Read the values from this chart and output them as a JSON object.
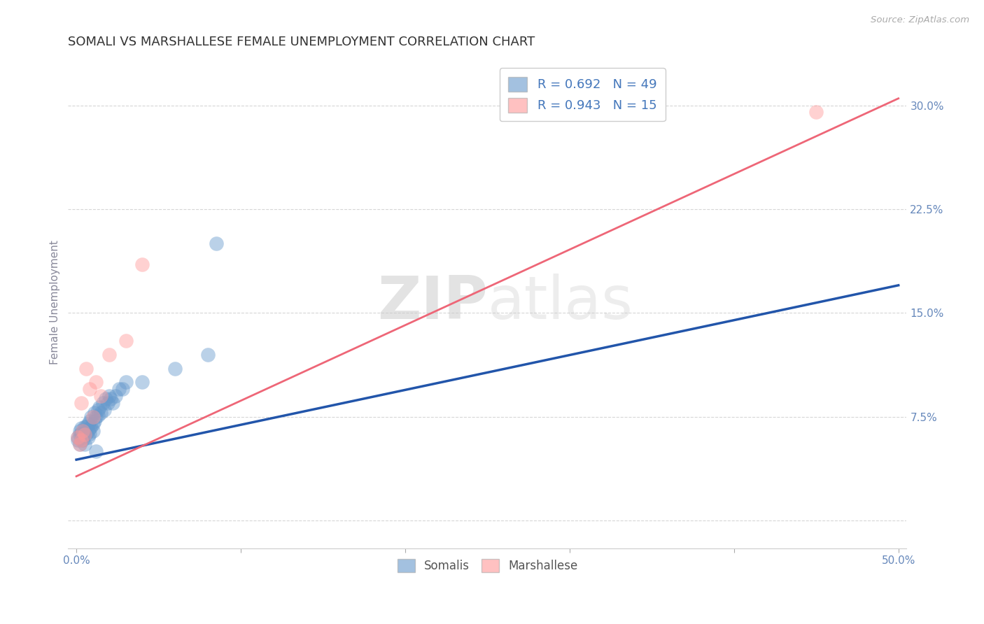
{
  "title": "SOMALI VS MARSHALLESE FEMALE UNEMPLOYMENT CORRELATION CHART",
  "source_text": "Source: ZipAtlas.com",
  "ylabel": "Female Unemployment",
  "xlim": [
    -0.005,
    0.505
  ],
  "ylim": [
    -0.02,
    0.335
  ],
  "xticks": [
    0.0,
    0.1,
    0.2,
    0.3,
    0.4,
    0.5
  ],
  "yticks": [
    0.0,
    0.075,
    0.15,
    0.225,
    0.3
  ],
  "xticklabels": [
    "0.0%",
    "",
    "",
    "",
    "",
    "50.0%"
  ],
  "yticklabels": [
    "",
    "7.5%",
    "15.0%",
    "22.5%",
    "30.0%"
  ],
  "somali_color": "#6699CC",
  "marshallese_color": "#FF9999",
  "somali_line_color": "#2255AA",
  "marshallese_line_color": "#EE6677",
  "R_somali": 0.692,
  "N_somali": 49,
  "R_marshallese": 0.943,
  "N_marshallese": 15,
  "somali_x": [
    0.001,
    0.001,
    0.002,
    0.002,
    0.002,
    0.003,
    0.003,
    0.003,
    0.004,
    0.004,
    0.004,
    0.005,
    0.005,
    0.005,
    0.006,
    0.006,
    0.007,
    0.007,
    0.007,
    0.008,
    0.008,
    0.008,
    0.009,
    0.009,
    0.01,
    0.01,
    0.011,
    0.011,
    0.012,
    0.013,
    0.013,
    0.014,
    0.015,
    0.016,
    0.017,
    0.018,
    0.019,
    0.02,
    0.021,
    0.022,
    0.024,
    0.026,
    0.028,
    0.03,
    0.04,
    0.06,
    0.08,
    0.085,
    0.012
  ],
  "somali_y": [
    0.06,
    0.058,
    0.055,
    0.062,
    0.065,
    0.058,
    0.063,
    0.067,
    0.06,
    0.065,
    0.058,
    0.062,
    0.068,
    0.055,
    0.063,
    0.068,
    0.065,
    0.07,
    0.06,
    0.067,
    0.063,
    0.072,
    0.068,
    0.075,
    0.07,
    0.065,
    0.072,
    0.078,
    0.075,
    0.08,
    0.076,
    0.082,
    0.078,
    0.085,
    0.08,
    0.088,
    0.085,
    0.09,
    0.088,
    0.085,
    0.09,
    0.095,
    0.095,
    0.1,
    0.1,
    0.11,
    0.12,
    0.2,
    0.05
  ],
  "marshallese_x": [
    0.001,
    0.002,
    0.003,
    0.003,
    0.004,
    0.005,
    0.006,
    0.008,
    0.01,
    0.012,
    0.015,
    0.02,
    0.03,
    0.04,
    0.45
  ],
  "marshallese_y": [
    0.06,
    0.055,
    0.058,
    0.085,
    0.065,
    0.062,
    0.11,
    0.095,
    0.075,
    0.1,
    0.09,
    0.12,
    0.13,
    0.185,
    0.295
  ],
  "somali_line_x": [
    0.0,
    0.5
  ],
  "somali_line_y": [
    0.044,
    0.17
  ],
  "marshallese_line_x": [
    0.0,
    0.5
  ],
  "marshallese_line_y": [
    0.032,
    0.305
  ],
  "watermark_zip": "ZIP",
  "watermark_atlas": "atlas",
  "background_color": "#FFFFFF",
  "grid_color": "#CCCCCC",
  "title_color": "#333333",
  "axis_label_color": "#888899",
  "tick_label_color": "#6688BB",
  "legend_R_color": "#4477BB"
}
